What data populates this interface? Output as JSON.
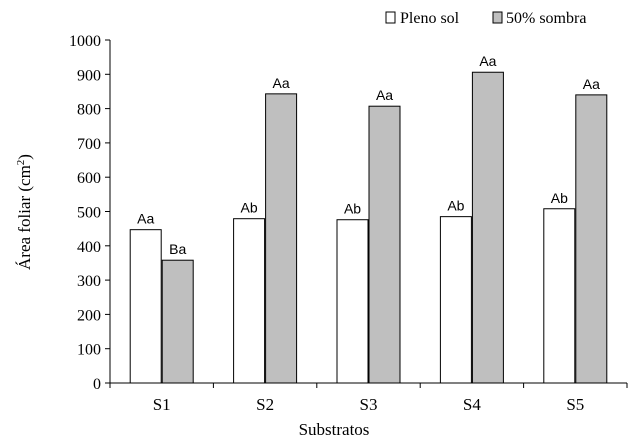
{
  "chart_data": {
    "type": "bar",
    "title": "",
    "xlabel": "Substratos",
    "ylabel": "Área foliar (cm²)",
    "ylabel_main": "Área foliar (cm",
    "ylabel_sup": "2",
    "ylabel_close": ")",
    "ylim": [
      0,
      1000
    ],
    "ytick_step": 100,
    "yticks": [
      "0",
      "100",
      "200",
      "300",
      "400",
      "500",
      "600",
      "700",
      "800",
      "900",
      "1000"
    ],
    "categories": [
      "S1",
      "S2",
      "S3",
      "S4",
      "S5"
    ],
    "grid": false,
    "legend_position": "top-right",
    "series": [
      {
        "name": "Pleno sol",
        "color": "#ffffff",
        "values": [
          447,
          479,
          476,
          485,
          508
        ],
        "labels": [
          "Aa",
          "Ab",
          "Ab",
          "Ab",
          "Ab"
        ]
      },
      {
        "name": "50% sombra",
        "color": "#bfbfbf",
        "values": [
          358,
          843,
          807,
          906,
          840
        ],
        "labels": [
          "Ba",
          "Aa",
          "Aa",
          "Aa",
          "Aa"
        ]
      }
    ]
  }
}
